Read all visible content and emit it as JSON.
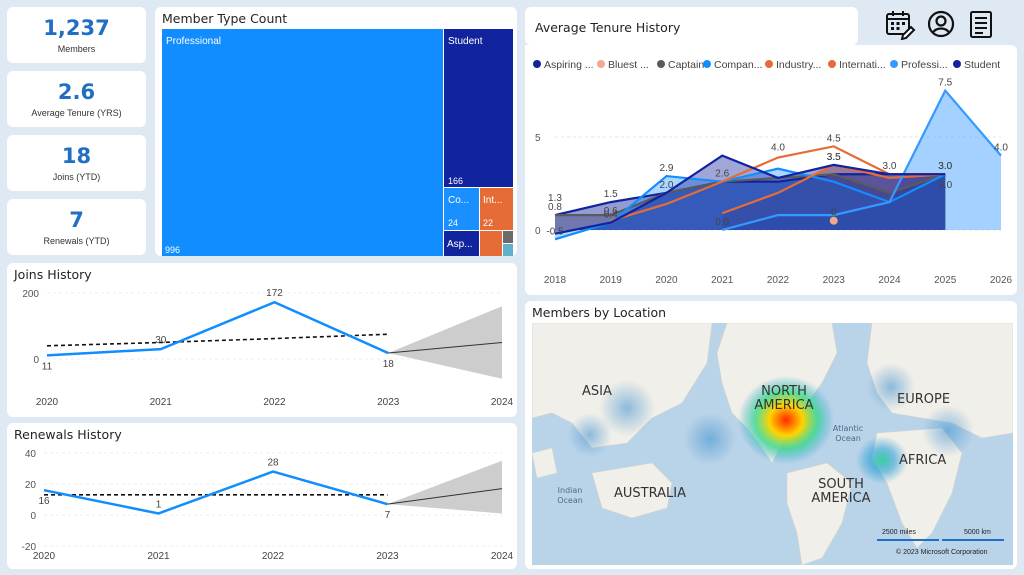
{
  "kpis": [
    {
      "value": "1,237",
      "label": "Members"
    },
    {
      "value": "2.6",
      "label": "Average Tenure (YRS)"
    },
    {
      "value": "18",
      "label": "Joins (YTD)"
    },
    {
      "value": "7",
      "label": "Renewals (YTD)"
    }
  ],
  "header_icons": [
    "calendar-icon",
    "user-profile-icon",
    "document-icon"
  ],
  "treemap": {
    "title": "Member Type Count",
    "colors": {
      "professional": "#118dff",
      "student": "#12239e",
      "companion": "#1a8fff",
      "international": "#e66c37",
      "aspiring": "#12239e",
      "other1": "#e66c37",
      "other2": "#6b6b6b"
    },
    "tiles": [
      {
        "name": "Professional",
        "value": "996"
      },
      {
        "name": "Student",
        "value": "166"
      },
      {
        "name": "Co...",
        "value": "24"
      },
      {
        "name": "Int...",
        "value": "22"
      },
      {
        "name": "Asp...",
        "value": ""
      }
    ]
  },
  "tenure": {
    "title": "Average Tenure History",
    "legend": [
      {
        "name": "Aspiring ...",
        "color": "#12239e"
      },
      {
        "name": "Bluest ...",
        "color": "#f0a98a"
      },
      {
        "name": "Captain",
        "color": "#5b5b5b"
      },
      {
        "name": "Compan...",
        "color": "#118dff"
      },
      {
        "name": "Industry...",
        "color": "#e66c37"
      },
      {
        "name": "Internati...",
        "color": "#e66c37"
      },
      {
        "name": "Professi...",
        "color": "#3599ff"
      },
      {
        "name": "Student",
        "color": "#12239e"
      }
    ]
  },
  "chart_data": [
    {
      "type": "area",
      "title": "Average Tenure History",
      "x": [
        2018,
        2019,
        2020,
        2021,
        2022,
        2023,
        2024,
        2025,
        2026
      ],
      "ylim": [
        -0.7,
        7.8
      ],
      "yticks": [
        0,
        5
      ],
      "series": [
        {
          "name": "Aspiring ...",
          "values": [
            0.8,
            1.5,
            2.0,
            2.6,
            2.6,
            3.0,
            3.0,
            3.0,
            null
          ]
        },
        {
          "name": "Bluest ...",
          "values": [
            null,
            null,
            null,
            null,
            null,
            0.5,
            null,
            null,
            null
          ]
        },
        {
          "name": "Captain",
          "values": [
            0.8,
            0.8,
            2.0,
            2.6,
            2.8,
            3.0,
            2.0,
            3.0,
            null
          ]
        },
        {
          "name": "Compan...",
          "values": [
            -0.5,
            0.4,
            2.9,
            2.6,
            3.3,
            2.6,
            1.5,
            3.0,
            null
          ]
        },
        {
          "name": "Industry...",
          "values": [
            null,
            null,
            null,
            0.9,
            2.0,
            3.5,
            2.8,
            3.0,
            null
          ]
        },
        {
          "name": "Internati...",
          "values": [
            null,
            0.5,
            1.4,
            2.6,
            3.9,
            4.5,
            3.0,
            3.0,
            null
          ]
        },
        {
          "name": "Professi...",
          "values": [
            null,
            null,
            null,
            0.0,
            0.8,
            0.8,
            1.5,
            7.5,
            4.0
          ]
        },
        {
          "name": "Student",
          "values": [
            -0.2,
            0.4,
            2.0,
            4.0,
            2.8,
            3.5,
            3.0,
            3.0,
            null
          ]
        }
      ],
      "labels": [
        "1.3",
        "0.8",
        "-0.5",
        "1.5",
        "0.6",
        "0.4",
        "2.9",
        "2.0",
        "2.6",
        "0.0",
        "4.0",
        "3.5",
        "4.5",
        "3.5",
        "3.0",
        "3.0",
        "0",
        "7.5",
        "3.0",
        "3.0",
        "4.0"
      ]
    },
    {
      "type": "line",
      "title": "Joins History",
      "x": [
        2020,
        2021,
        2022,
        2023,
        2024
      ],
      "ylim": [
        0,
        200
      ],
      "yticks": [
        0,
        200
      ],
      "series": [
        {
          "name": "",
          "values": [
            11,
            30,
            172,
            18,
            null
          ]
        }
      ],
      "trend": [
        40,
        50,
        62,
        75
      ],
      "forecast": {
        "value": [
          18,
          50
        ],
        "upper": [
          18,
          160
        ],
        "lower": [
          18,
          -60
        ]
      },
      "labels": [
        "11",
        "30",
        "172",
        "18"
      ]
    },
    {
      "type": "line",
      "title": "Renewals History",
      "x": [
        2020,
        2021,
        2022,
        2023,
        2024
      ],
      "ylim": [
        -20,
        40
      ],
      "yticks": [
        -20,
        0,
        20,
        40
      ],
      "series": [
        {
          "name": "",
          "values": [
            16,
            1,
            28,
            7,
            null
          ]
        }
      ],
      "trend": [
        13,
        13,
        13,
        13
      ],
      "forecast": {
        "value": [
          7,
          17
        ],
        "upper": [
          7,
          35
        ],
        "lower": [
          7,
          1
        ]
      },
      "labels": [
        "16",
        "1",
        "28",
        "7"
      ]
    }
  ],
  "map": {
    "title": "Members by Location",
    "labels": {
      "asia": "ASIA",
      "north_america": "NORTH AMERICA",
      "europe": "EUROPE",
      "atlantic": "Atlantic Ocean",
      "africa": "AFRICA",
      "indian": "Indian Ocean",
      "australia": "AUSTRALIA",
      "south_america": "SOUTH AMERICA"
    },
    "scale_miles": "2500 miles",
    "scale_km": "5000 km",
    "copyright": "© 2023 Microsoft Corporation"
  }
}
